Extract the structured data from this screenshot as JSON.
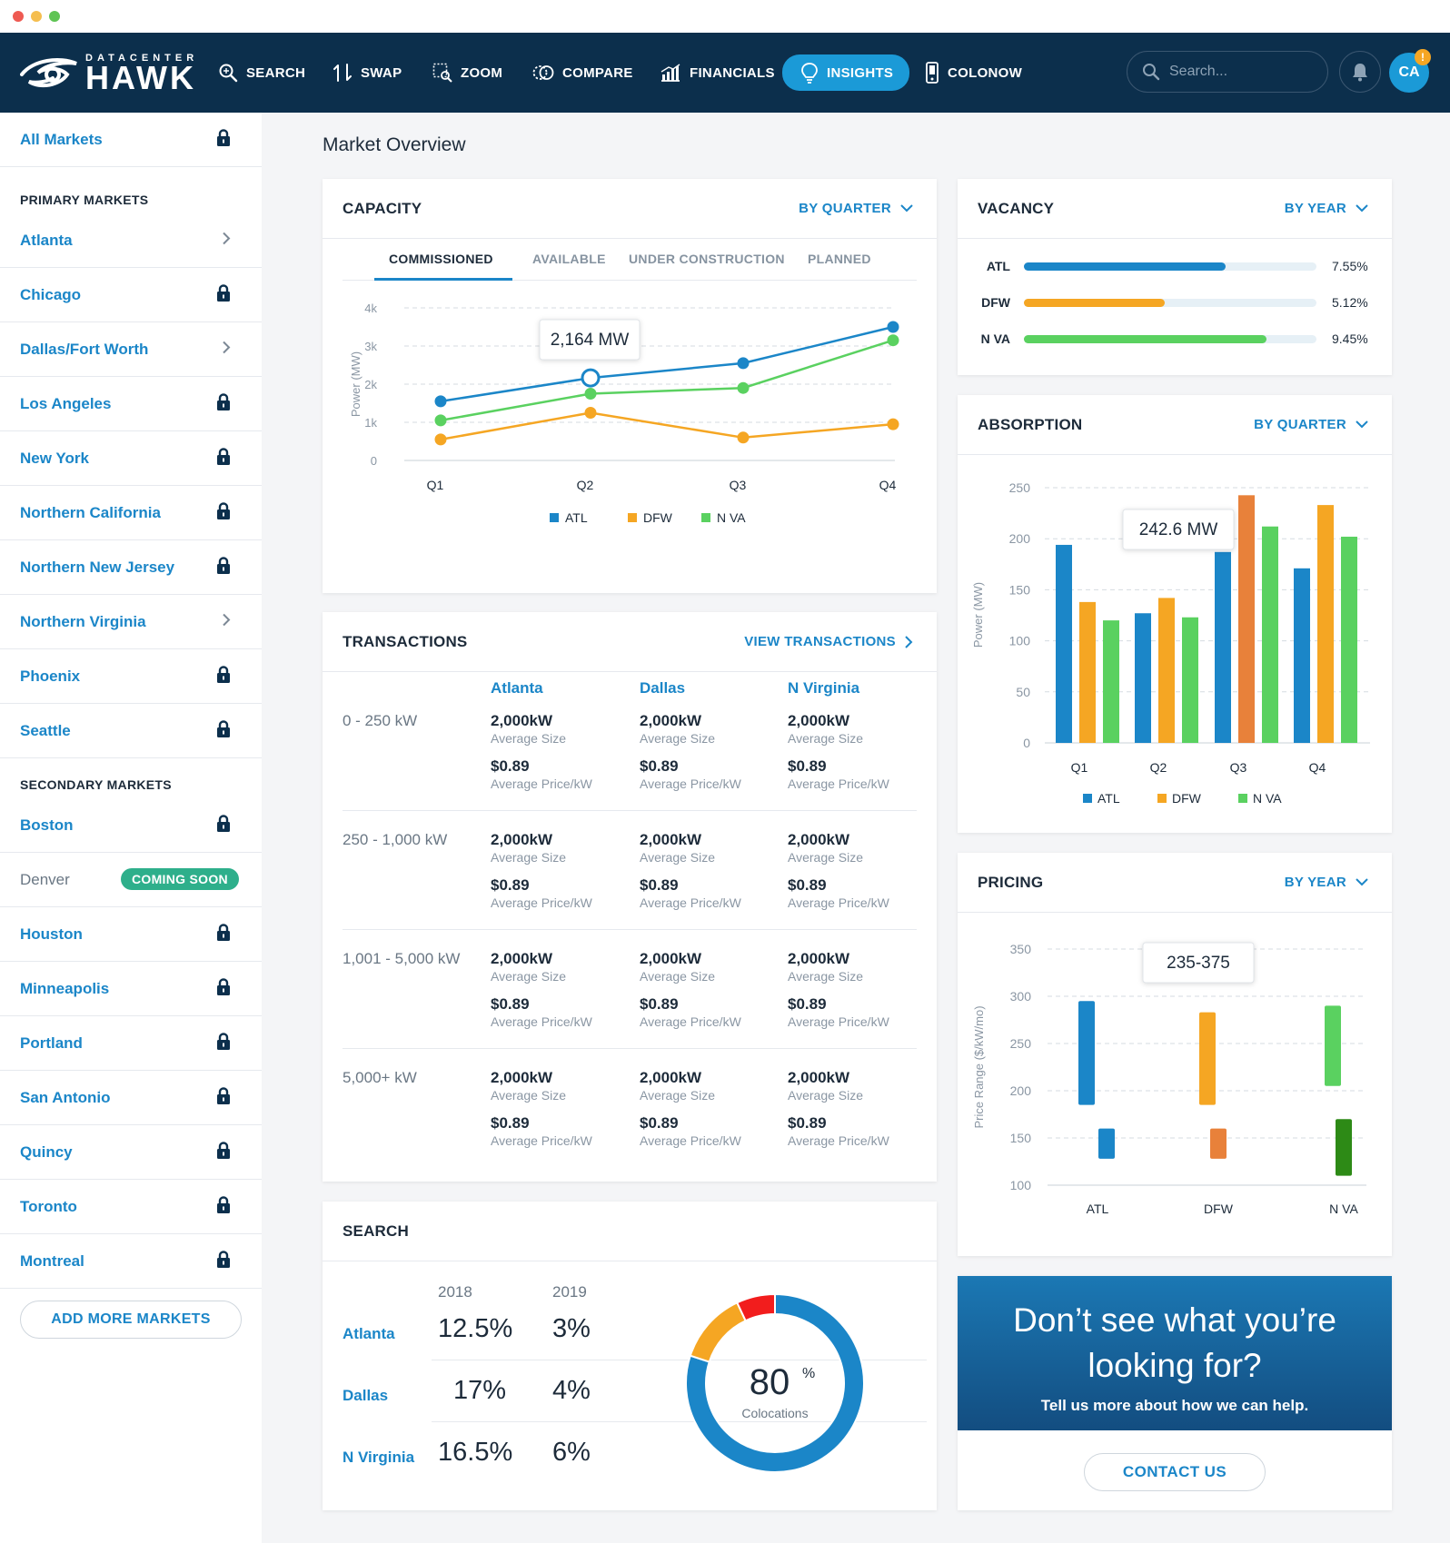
{
  "brand": {
    "small": "DATACENTER",
    "big": "HAWK"
  },
  "nav": {
    "items": [
      {
        "label": "SEARCH",
        "icon": "search-icon"
      },
      {
        "label": "SWAP",
        "icon": "swap-icon"
      },
      {
        "label": "ZOOM",
        "icon": "zoom-icon"
      },
      {
        "label": "COMPARE",
        "icon": "compare-icon"
      },
      {
        "label": "FINANCIALS",
        "icon": "financials-icon"
      },
      {
        "label": "INSIGHTS",
        "icon": "lightbulb-icon",
        "active": true
      },
      {
        "label": "COLONOW",
        "icon": "phone-icon"
      }
    ],
    "search_placeholder": "Search...",
    "avatar": "CA",
    "badge": "!"
  },
  "sidebar": {
    "all_markets": "All Markets",
    "primary_heading": "PRIMARY MARKETS",
    "primary": [
      {
        "label": "Atlanta",
        "icon": "chevron-right-icon"
      },
      {
        "label": "Chicago",
        "icon": "lock-icon"
      },
      {
        "label": "Dallas/Fort Worth",
        "icon": "chevron-right-icon"
      },
      {
        "label": "Los Angeles",
        "icon": "lock-icon"
      },
      {
        "label": "New York",
        "icon": "lock-icon"
      },
      {
        "label": "Northern California",
        "icon": "lock-icon"
      },
      {
        "label": "Northern New Jersey",
        "icon": "lock-icon"
      },
      {
        "label": "Northern Virginia",
        "icon": "chevron-right-icon"
      },
      {
        "label": "Phoenix",
        "icon": "lock-icon"
      },
      {
        "label": "Seattle",
        "icon": "lock-icon"
      }
    ],
    "secondary_heading": "SECONDARY MARKETS",
    "secondary": [
      {
        "label": "Boston",
        "icon": "lock-icon"
      },
      {
        "label": "Denver",
        "badge": "COMING SOON"
      },
      {
        "label": "Houston",
        "icon": "lock-icon"
      },
      {
        "label": "Minneapolis",
        "icon": "lock-icon"
      },
      {
        "label": "Portland",
        "icon": "lock-icon"
      },
      {
        "label": "San Antonio",
        "icon": "lock-icon"
      },
      {
        "label": "Quincy",
        "icon": "lock-icon"
      },
      {
        "label": "Toronto",
        "icon": "lock-icon"
      },
      {
        "label": "Montreal",
        "icon": "lock-icon"
      }
    ],
    "add_button": "ADD MORE MARKETS"
  },
  "page_title": "Market Overview",
  "capacity": {
    "title": "CAPACITY",
    "action": "BY QUARTER",
    "tabs": [
      "COMMISSIONED",
      "AVAILABLE",
      "UNDER CONSTRUCTION",
      "PLANNED"
    ],
    "active_tab": "COMMISSIONED",
    "tooltip": "2,164 MW"
  },
  "vacancy": {
    "title": "VACANCY",
    "action": "BY YEAR",
    "rows": [
      {
        "label": "ATL",
        "value": "7.55%",
        "fill": 0.69,
        "color": "#1b86c8"
      },
      {
        "label": "DFW",
        "value": "5.12%",
        "fill": 0.48,
        "color": "#f5a623"
      },
      {
        "label": "N VA",
        "value": "9.45%",
        "fill": 0.83,
        "color": "#5ad160"
      }
    ]
  },
  "absorption": {
    "title": "ABSORPTION",
    "action": "BY QUARTER",
    "tooltip": "242.6 MW"
  },
  "transactions": {
    "title": "TRANSACTIONS",
    "action": "VIEW TRANSACTIONS",
    "columns": [
      "Atlanta",
      "Dallas",
      "N Virginia"
    ],
    "rows": [
      {
        "range": "0 - 250 kW",
        "size": [
          "2,000kW",
          "2,000kW",
          "2,000kW"
        ],
        "price": [
          "$0.89",
          "$0.89",
          "$0.89"
        ]
      },
      {
        "range": "250 - 1,000 kW",
        "size": [
          "2,000kW",
          "2,000kW",
          "2,000kW"
        ],
        "price": [
          "$0.89",
          "$0.89",
          "$0.89"
        ]
      },
      {
        "range": "1,001 - 5,000 kW",
        "size": [
          "2,000kW",
          "2,000kW",
          "2,000kW"
        ],
        "price": [
          "$0.89",
          "$0.89",
          "$0.89"
        ]
      },
      {
        "range": "5,000+ kW",
        "size": [
          "2,000kW",
          "2,000kW",
          "2,000kW"
        ],
        "price": [
          "$0.89",
          "$0.89",
          "$0.89"
        ]
      }
    ],
    "size_label": "Average Size",
    "price_label": "Average Price/kW"
  },
  "pricing": {
    "title": "PRICING",
    "action": "BY YEAR",
    "tooltip": "235-375"
  },
  "search_card": {
    "title": "SEARCH",
    "years": [
      "2018",
      "2019"
    ],
    "rows": [
      {
        "city": "Atlanta",
        "y2018": "12.5%",
        "y2019": "3%"
      },
      {
        "city": "Dallas",
        "y2018": "17%",
        "y2019": "4%"
      },
      {
        "city": "N Virginia",
        "y2018": "16.5%",
        "y2019": "6%"
      }
    ],
    "donut_value": "80",
    "donut_unit": "%",
    "donut_label": "Colocations"
  },
  "cta": {
    "title_line1": "Don’t see what you’re",
    "title_line2": "looking for?",
    "subtitle": "Tell us more about how we can help.",
    "button": "CONTACT US"
  },
  "chart_data": [
    {
      "type": "line",
      "categories": [
        "Q1",
        "Q2",
        "Q3",
        "Q4"
      ],
      "ylabel": "Power (MW)",
      "yticks": [
        "0",
        "1k",
        "2k",
        "3k",
        "4k"
      ],
      "ylim": [
        0,
        4000
      ],
      "series": [
        {
          "name": "ATL",
          "color": "#1b86c8",
          "values": [
            1550,
            2164,
            2550,
            3500
          ]
        },
        {
          "name": "DFW",
          "color": "#f5a623",
          "values": [
            550,
            1250,
            600,
            950
          ]
        },
        {
          "name": "N VA",
          "color": "#5ad160",
          "values": [
            1050,
            1750,
            1900,
            3150
          ]
        }
      ],
      "grid": true,
      "legend": "bottom"
    },
    {
      "type": "bar",
      "categories": [
        "Q1",
        "Q2",
        "Q3",
        "Q4"
      ],
      "ylabel": "Power (MW)",
      "yticks": [
        "0",
        "50",
        "100",
        "150",
        "200",
        "250"
      ],
      "ylim": [
        0,
        250
      ],
      "series": [
        {
          "name": "ATL",
          "color": "#1b86c8",
          "values": [
            194,
            127,
            187,
            171
          ]
        },
        {
          "name": "DFW",
          "color": "#f5a623",
          "values": [
            138,
            142,
            242.6,
            233
          ]
        },
        {
          "name": "N VA",
          "color": "#5ad160",
          "values": [
            120,
            123,
            212,
            202
          ]
        }
      ],
      "highlight": {
        "series": "DFW",
        "category": "Q3",
        "color": "#e8813a"
      },
      "grid": true,
      "legend": "bottom"
    },
    {
      "type": "bar",
      "subtype": "range",
      "categories": [
        "ATL",
        "DFW",
        "N VA"
      ],
      "ylabel": "Price Range ($/kW/mo)",
      "yticks": [
        "100",
        "150",
        "200",
        "250",
        "300",
        "350"
      ],
      "ylim": [
        100,
        350
      ],
      "ranges": [
        {
          "category": "ATL",
          "color": "#1b86c8",
          "high": [
            185,
            295
          ],
          "low": [
            128,
            160
          ]
        },
        {
          "category": "DFW",
          "color": "#f5a623",
          "high": [
            185,
            283
          ],
          "low": [
            128,
            160
          ],
          "low_color": "#e8813a"
        },
        {
          "category": "N VA",
          "color": "#5ad160",
          "high": [
            205,
            290
          ],
          "low": [
            110,
            170
          ],
          "low_color": "#2d8a16"
        }
      ],
      "grid": true
    },
    {
      "type": "pie",
      "subtype": "donut",
      "slices": [
        {
          "label": "Colocations",
          "value": 80,
          "color": "#1b86c8"
        },
        {
          "label": "",
          "value": 13,
          "color": "#f5a623"
        },
        {
          "label": "",
          "value": 7,
          "color": "#f21d1d"
        }
      ]
    }
  ]
}
